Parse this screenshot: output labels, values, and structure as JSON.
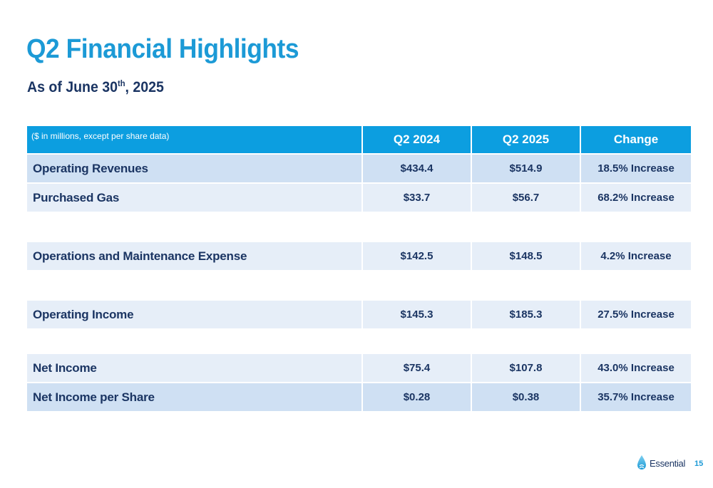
{
  "slide": {
    "title": "Q2 Financial Highlights",
    "subtitle_prefix": "As of June 30",
    "subtitle_sup": "th",
    "subtitle_suffix": ", 2025",
    "page_number": "15"
  },
  "table": {
    "note": "($ in millions, except per share data)",
    "headers": [
      "Q2 2024",
      "Q2 2025",
      "Change"
    ],
    "rows": [
      {
        "label": "Operating Revenues",
        "q2_2024": "$434.4",
        "q2_2025": "$514.9",
        "change": "18.5% Increase"
      },
      {
        "label": "Purchased Gas",
        "q2_2024": "$33.7",
        "q2_2025": "$56.7",
        "change": "68.2% Increase"
      },
      {
        "label": "Operations and Maintenance Expense",
        "q2_2024": "$142.5",
        "q2_2025": "$148.5",
        "change": "4.2% Increase"
      },
      {
        "label": "Operating Income",
        "q2_2024": "$145.3",
        "q2_2025": "$185.3",
        "change": "27.5% Increase"
      },
      {
        "label": "Net Income",
        "q2_2024": "$75.4",
        "q2_2025": "$107.8",
        "change": "43.0% Increase"
      },
      {
        "label": "Net Income per Share",
        "q2_2024": "$0.28",
        "q2_2025": "$0.38",
        "change": "35.7% Increase"
      }
    ]
  },
  "logo": {
    "text": "Essential",
    "icon": "water-drop-icon"
  },
  "colors": {
    "title": "#1c9ad6",
    "header_bg": "#0c9ee0",
    "text_dark": "#1b3563",
    "row_dark": "#cfe0f3",
    "row_light": "#e6eef8"
  }
}
